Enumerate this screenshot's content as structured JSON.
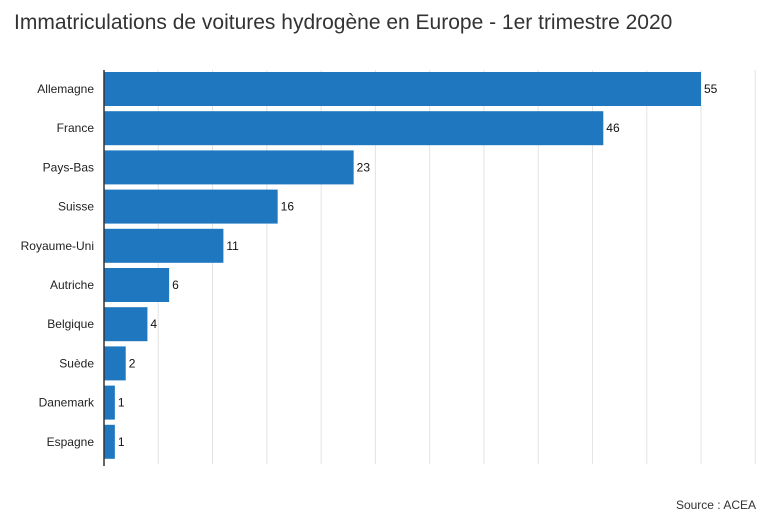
{
  "chart_data": {
    "type": "bar",
    "orientation": "horizontal",
    "title": "Immatriculations de voitures hydrogène en Europe - 1er trimestre 2020",
    "categories": [
      "Allemagne",
      "France",
      "Pays-Bas",
      "Suisse",
      "Royaume-Uni",
      "Autriche",
      "Belgique",
      "Suède",
      "Danemark",
      "Espagne"
    ],
    "values": [
      55,
      46,
      23,
      16,
      11,
      6,
      4,
      2,
      1,
      1
    ],
    "xlim": [
      0,
      60
    ],
    "grid": true,
    "bar_color": "#1f77c0",
    "data_labels": true,
    "source": "Source : ACEA"
  }
}
